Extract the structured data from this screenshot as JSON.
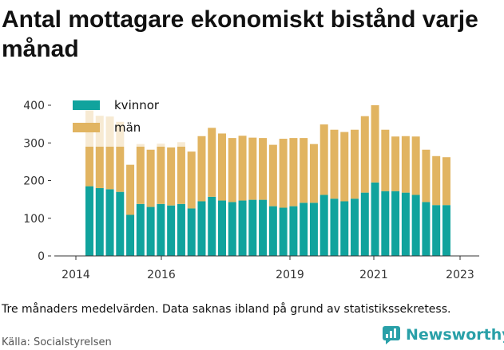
{
  "title": "Antal mottagare ekonomiskt bistånd varje månad",
  "caption": "Tre månaders medelvärden. Data saknas ibland på grund av statistikssekretess.",
  "source": "Källa: Socialstyrelsen",
  "brand": {
    "name": "Newsworthy",
    "icon": "newsworthy-logo-icon"
  },
  "colors": {
    "kvinnor": "#10a39d",
    "man": "#e1b461",
    "axis": "#333333",
    "grid": "#dddddd"
  },
  "chart_data": {
    "type": "bar",
    "stacked": true,
    "x_ticks": [
      "2014",
      "2016",
      "2019",
      "2021",
      "2023"
    ],
    "y_ticks": [
      "0",
      "100",
      "200",
      "300",
      "400"
    ],
    "ylim": [
      0,
      400
    ],
    "grid": false,
    "legend_position": "top-left",
    "series": [
      {
        "name": "kvinnor",
        "values": [
          185,
          180,
          177,
          170,
          109,
          138,
          130,
          138,
          134,
          138,
          126,
          145,
          157,
          147,
          143,
          147,
          149,
          149,
          132,
          128,
          132,
          141,
          141,
          162,
          152,
          145,
          152,
          168,
          195,
          172,
          172,
          168,
          162,
          143,
          135,
          135
        ]
      },
      {
        "name": "män",
        "values": [
          201,
          192,
          193,
          186,
          133,
          159,
          152,
          160,
          154,
          164,
          151,
          173,
          183,
          178,
          170,
          172,
          165,
          164,
          163,
          183,
          181,
          172,
          156,
          187,
          183,
          184,
          183,
          203,
          205,
          163,
          145,
          150,
          155,
          139,
          130,
          127
        ]
      }
    ]
  }
}
